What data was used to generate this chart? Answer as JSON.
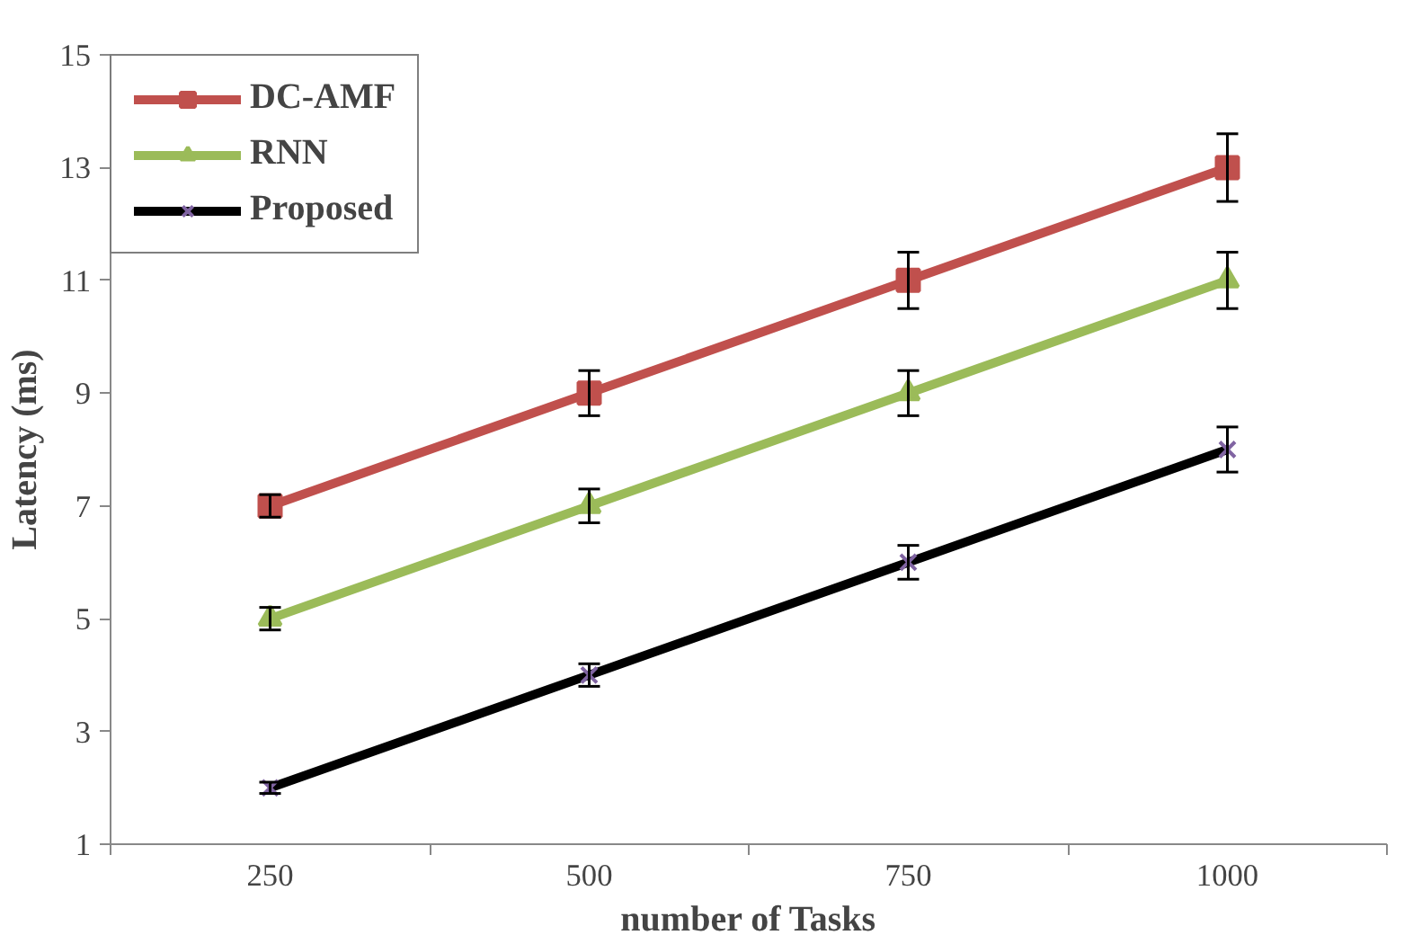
{
  "chart_data": {
    "type": "line",
    "xlabel": "number of Tasks",
    "ylabel": "Latency (ms)",
    "categories": [
      "250",
      "500",
      "750",
      "1000"
    ],
    "ylim": [
      1,
      15
    ],
    "yticks": [
      1,
      3,
      5,
      7,
      9,
      11,
      13,
      15
    ],
    "grid": false,
    "legend": "top left",
    "line_style": "solid",
    "series": [
      {
        "name": "DC-AMF",
        "color": "#c0504d",
        "marker": "square",
        "values": [
          7,
          9,
          11,
          13
        ],
        "errors": [
          0.2,
          0.4,
          0.5,
          0.6
        ]
      },
      {
        "name": "RNN",
        "color": "#9bbb59",
        "marker": "triangle",
        "values": [
          5,
          7,
          9,
          11
        ],
        "errors": [
          0.2,
          0.3,
          0.4,
          0.5
        ]
      },
      {
        "name": "Proposed",
        "color": "#000000",
        "marker": "cross",
        "values": [
          2,
          4,
          6,
          8
        ],
        "errors": [
          0.1,
          0.2,
          0.3,
          0.4
        ]
      }
    ]
  }
}
